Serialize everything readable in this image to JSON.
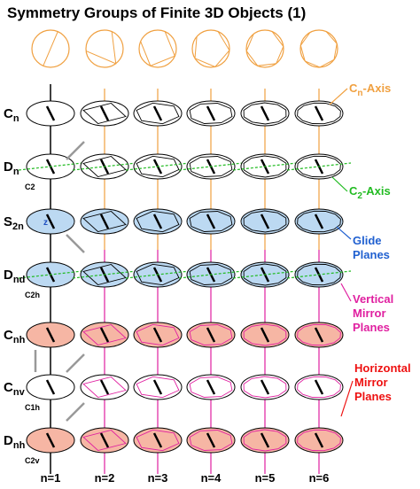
{
  "header": {
    "title": "Symmetry Groups of Finite 3D Objects (1)"
  },
  "rows": [
    {
      "main": "C",
      "sub": "n"
    },
    {
      "main": "D",
      "sub": "n",
      "note": "C2"
    },
    {
      "main": "S",
      "sub": "2n",
      "note": "z"
    },
    {
      "main": "D",
      "sub": "nd",
      "note": "C2h"
    },
    {
      "main": "C",
      "sub": "nh"
    },
    {
      "main": "C",
      "sub": "nv",
      "note": "C1h"
    },
    {
      "main": "D",
      "sub": "nh",
      "note": "C2v"
    }
  ],
  "columns": [
    "n=1",
    "n=2",
    "n=3",
    "n=4",
    "n=5",
    "n=6"
  ],
  "annotations": {
    "cn_axis": {
      "main": "C",
      "sub": "n",
      "rest": "-Axis"
    },
    "c2_axis": {
      "main": "C",
      "sub": "2",
      "rest": "-Axis"
    },
    "glide": [
      "Glide",
      "Planes"
    ],
    "vertical": [
      "Vertical",
      "Mirror",
      "Planes"
    ],
    "horizontal": [
      "Horizontal",
      "Mirror",
      "Planes"
    ]
  }
}
